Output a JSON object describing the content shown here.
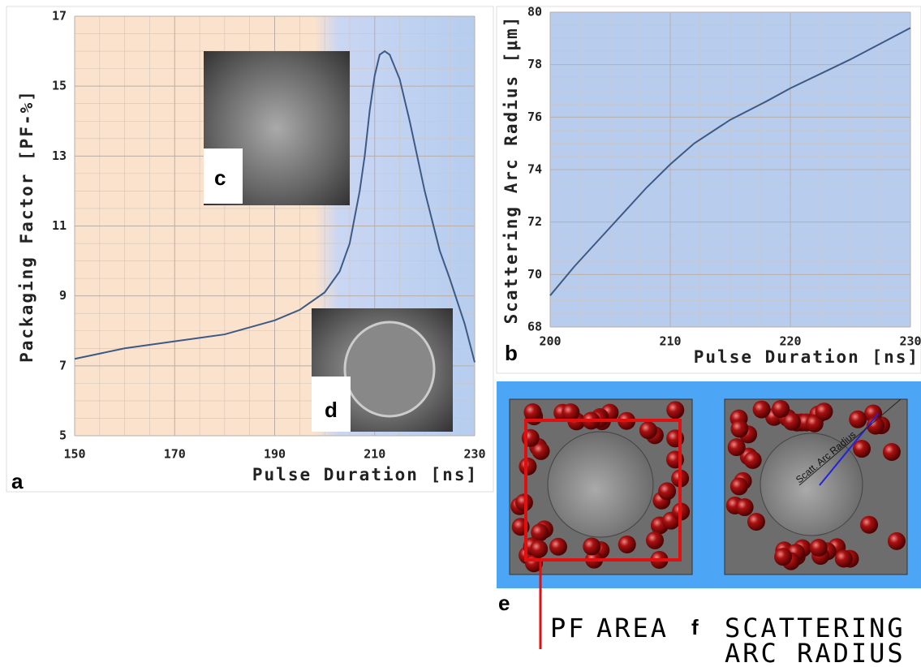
{
  "chart_data": [
    {
      "type": "line",
      "x_label": "Pulse Duration [ns]",
      "y_label": "Packaging Factor [PF-%]",
      "x": [
        150,
        160,
        170,
        180,
        190,
        195,
        200,
        203,
        205,
        207,
        208,
        209,
        210,
        211,
        212,
        213,
        215,
        217,
        220,
        223,
        225,
        228,
        230
      ],
      "values": [
        7.2,
        7.5,
        7.7,
        7.9,
        8.3,
        8.6,
        9.1,
        9.7,
        10.5,
        12.0,
        13.0,
        14.3,
        15.3,
        15.9,
        16.0,
        15.9,
        15.2,
        14.0,
        12.0,
        10.3,
        9.5,
        8.2,
        7.1
      ],
      "color": "#3d5a86",
      "xlim": [
        150,
        230
      ],
      "ylim": [
        5,
        17
      ],
      "xticks": [
        150,
        170,
        190,
        210,
        230
      ],
      "yticks": [
        5,
        7,
        9,
        11,
        13,
        15,
        17
      ],
      "grid": true
    },
    {
      "type": "line",
      "x_label": "Pulse Duration [ns]",
      "y_label": "Scattering Arc Radius [μm]",
      "x": [
        200,
        202,
        205,
        208,
        210,
        212,
        215,
        218,
        220,
        225,
        230
      ],
      "values": [
        69.2,
        70.3,
        71.8,
        73.3,
        74.2,
        75.0,
        75.9,
        76.6,
        77.1,
        78.2,
        79.4
      ],
      "color": "#3d5a86",
      "xlim": [
        200,
        230
      ],
      "ylim": [
        68,
        80
      ],
      "xticks": [
        200,
        210,
        220,
        230
      ],
      "yticks": [
        68,
        70,
        72,
        74,
        76,
        78,
        80
      ],
      "grid": true
    }
  ],
  "panel_labels": [
    "a",
    "b",
    "c",
    "d",
    "e",
    "f"
  ],
  "diagram": {
    "pf": "PF",
    "area": "AREA",
    "scattering": "SCATTERING",
    "arc_radius": "ARC RADIUS",
    "arc_label": "Scatt. Arc Radius"
  }
}
